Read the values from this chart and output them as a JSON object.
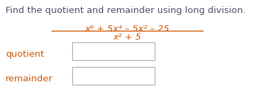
{
  "title": "Find the quotient and remainder using long division.",
  "title_color": "#4a4a6a",
  "title_fontsize": 9.5,
  "numerator": "x⁶ + 5x⁴ – 5x² – 25",
  "denominator": "x² + 5",
  "fraction_color": "#cc5500",
  "label_color": "#cc5500",
  "quotient_label": "quotient",
  "remainder_label": "remainder",
  "bg_color": "#ffffff",
  "box_edge_color": "#aaaaaa",
  "fraction_line_color": "#cc5500",
  "font_family": "DejaVu Sans"
}
